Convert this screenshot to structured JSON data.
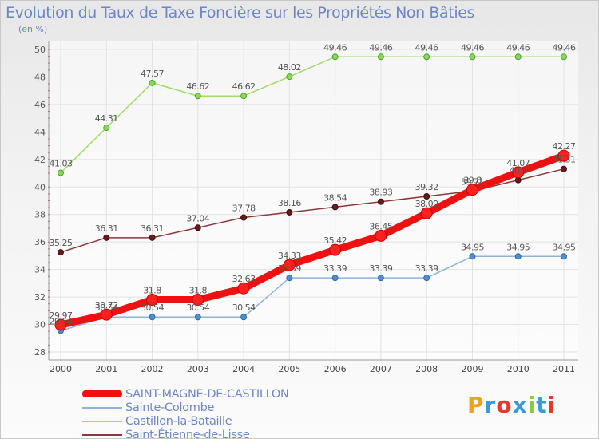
{
  "title": "Evolution du Taux de Taxe Foncière sur les Propriétés Non Bâties",
  "unit": "(en %)",
  "logo": {
    "text": "Proxiti",
    "colors": [
      "#f0a020",
      "#3a9ad9",
      "#e23b2e",
      "#3a9ad9",
      "#8cc63f",
      "#3a9ad9",
      "#e23b2e"
    ]
  },
  "chart_data": {
    "type": "line",
    "title": "Evolution du Taux de Taxe Foncière sur les Propriétés Non Bâties",
    "ylabel": "(en %)",
    "xlabel": "",
    "x": [
      "2000",
      "2001",
      "2002",
      "2003",
      "2004",
      "2005",
      "2006",
      "2007",
      "2008",
      "2009",
      "2010",
      "2011"
    ],
    "ylim": [
      28,
      50
    ],
    "yticks": [
      28,
      30,
      32,
      34,
      36,
      38,
      40,
      42,
      44,
      46,
      48,
      50
    ],
    "grid": true,
    "legend_position": "bottom-left",
    "series": [
      {
        "name": "SAINT-MAGNE-DE-CASTILLON",
        "color": "#ee1111",
        "values": [
          29.97,
          30.72,
          31.8,
          31.8,
          32.63,
          34.33,
          35.42,
          36.45,
          38.09,
          39.8,
          41.07,
          42.27
        ],
        "labels": [
          "29.97",
          "30.72",
          "31.8",
          "31.8",
          "32.63",
          "34.33",
          "35.42",
          "36.45",
          "38.09",
          "39.8",
          "41.07",
          "42.27"
        ]
      },
      {
        "name": "Sainte-Colombe",
        "color": "#6f9fcf",
        "values": [
          29.54,
          30.54,
          30.54,
          30.54,
          30.54,
          33.39,
          33.39,
          33.39,
          33.39,
          34.95,
          34.95,
          34.95
        ],
        "labels": [
          "29.54",
          "30.54",
          "30.54",
          "30.54",
          "30.54",
          "33.39",
          "33.39",
          "33.39",
          "33.39",
          "34.95",
          "34.95",
          "34.95"
        ]
      },
      {
        "name": "Castillon-la-Bataille",
        "color": "#8ed45a",
        "values": [
          41.03,
          44.31,
          47.57,
          46.62,
          46.62,
          48.02,
          49.46,
          49.46,
          49.46,
          49.46,
          49.46,
          49.46
        ],
        "labels": [
          "41.03",
          "44.31",
          "47.57",
          "46.62",
          "46.62",
          "48.02",
          "49.46",
          "49.46",
          "49.46",
          "49.46",
          "49.46",
          "49.46"
        ]
      },
      {
        "name": "Saint-Étienne-de-Lisse",
        "color": "#7a2a2a",
        "values": [
          35.25,
          36.31,
          36.31,
          37.04,
          37.78,
          38.16,
          38.54,
          38.93,
          39.32,
          39.71,
          40.5,
          41.31
        ],
        "labels": [
          "35.25",
          "36.31",
          "36.31",
          "37.04",
          "37.78",
          "38.16",
          "38.54",
          "38.93",
          "39.32",
          "39.71",
          "40.5",
          "41.31"
        ]
      }
    ]
  }
}
